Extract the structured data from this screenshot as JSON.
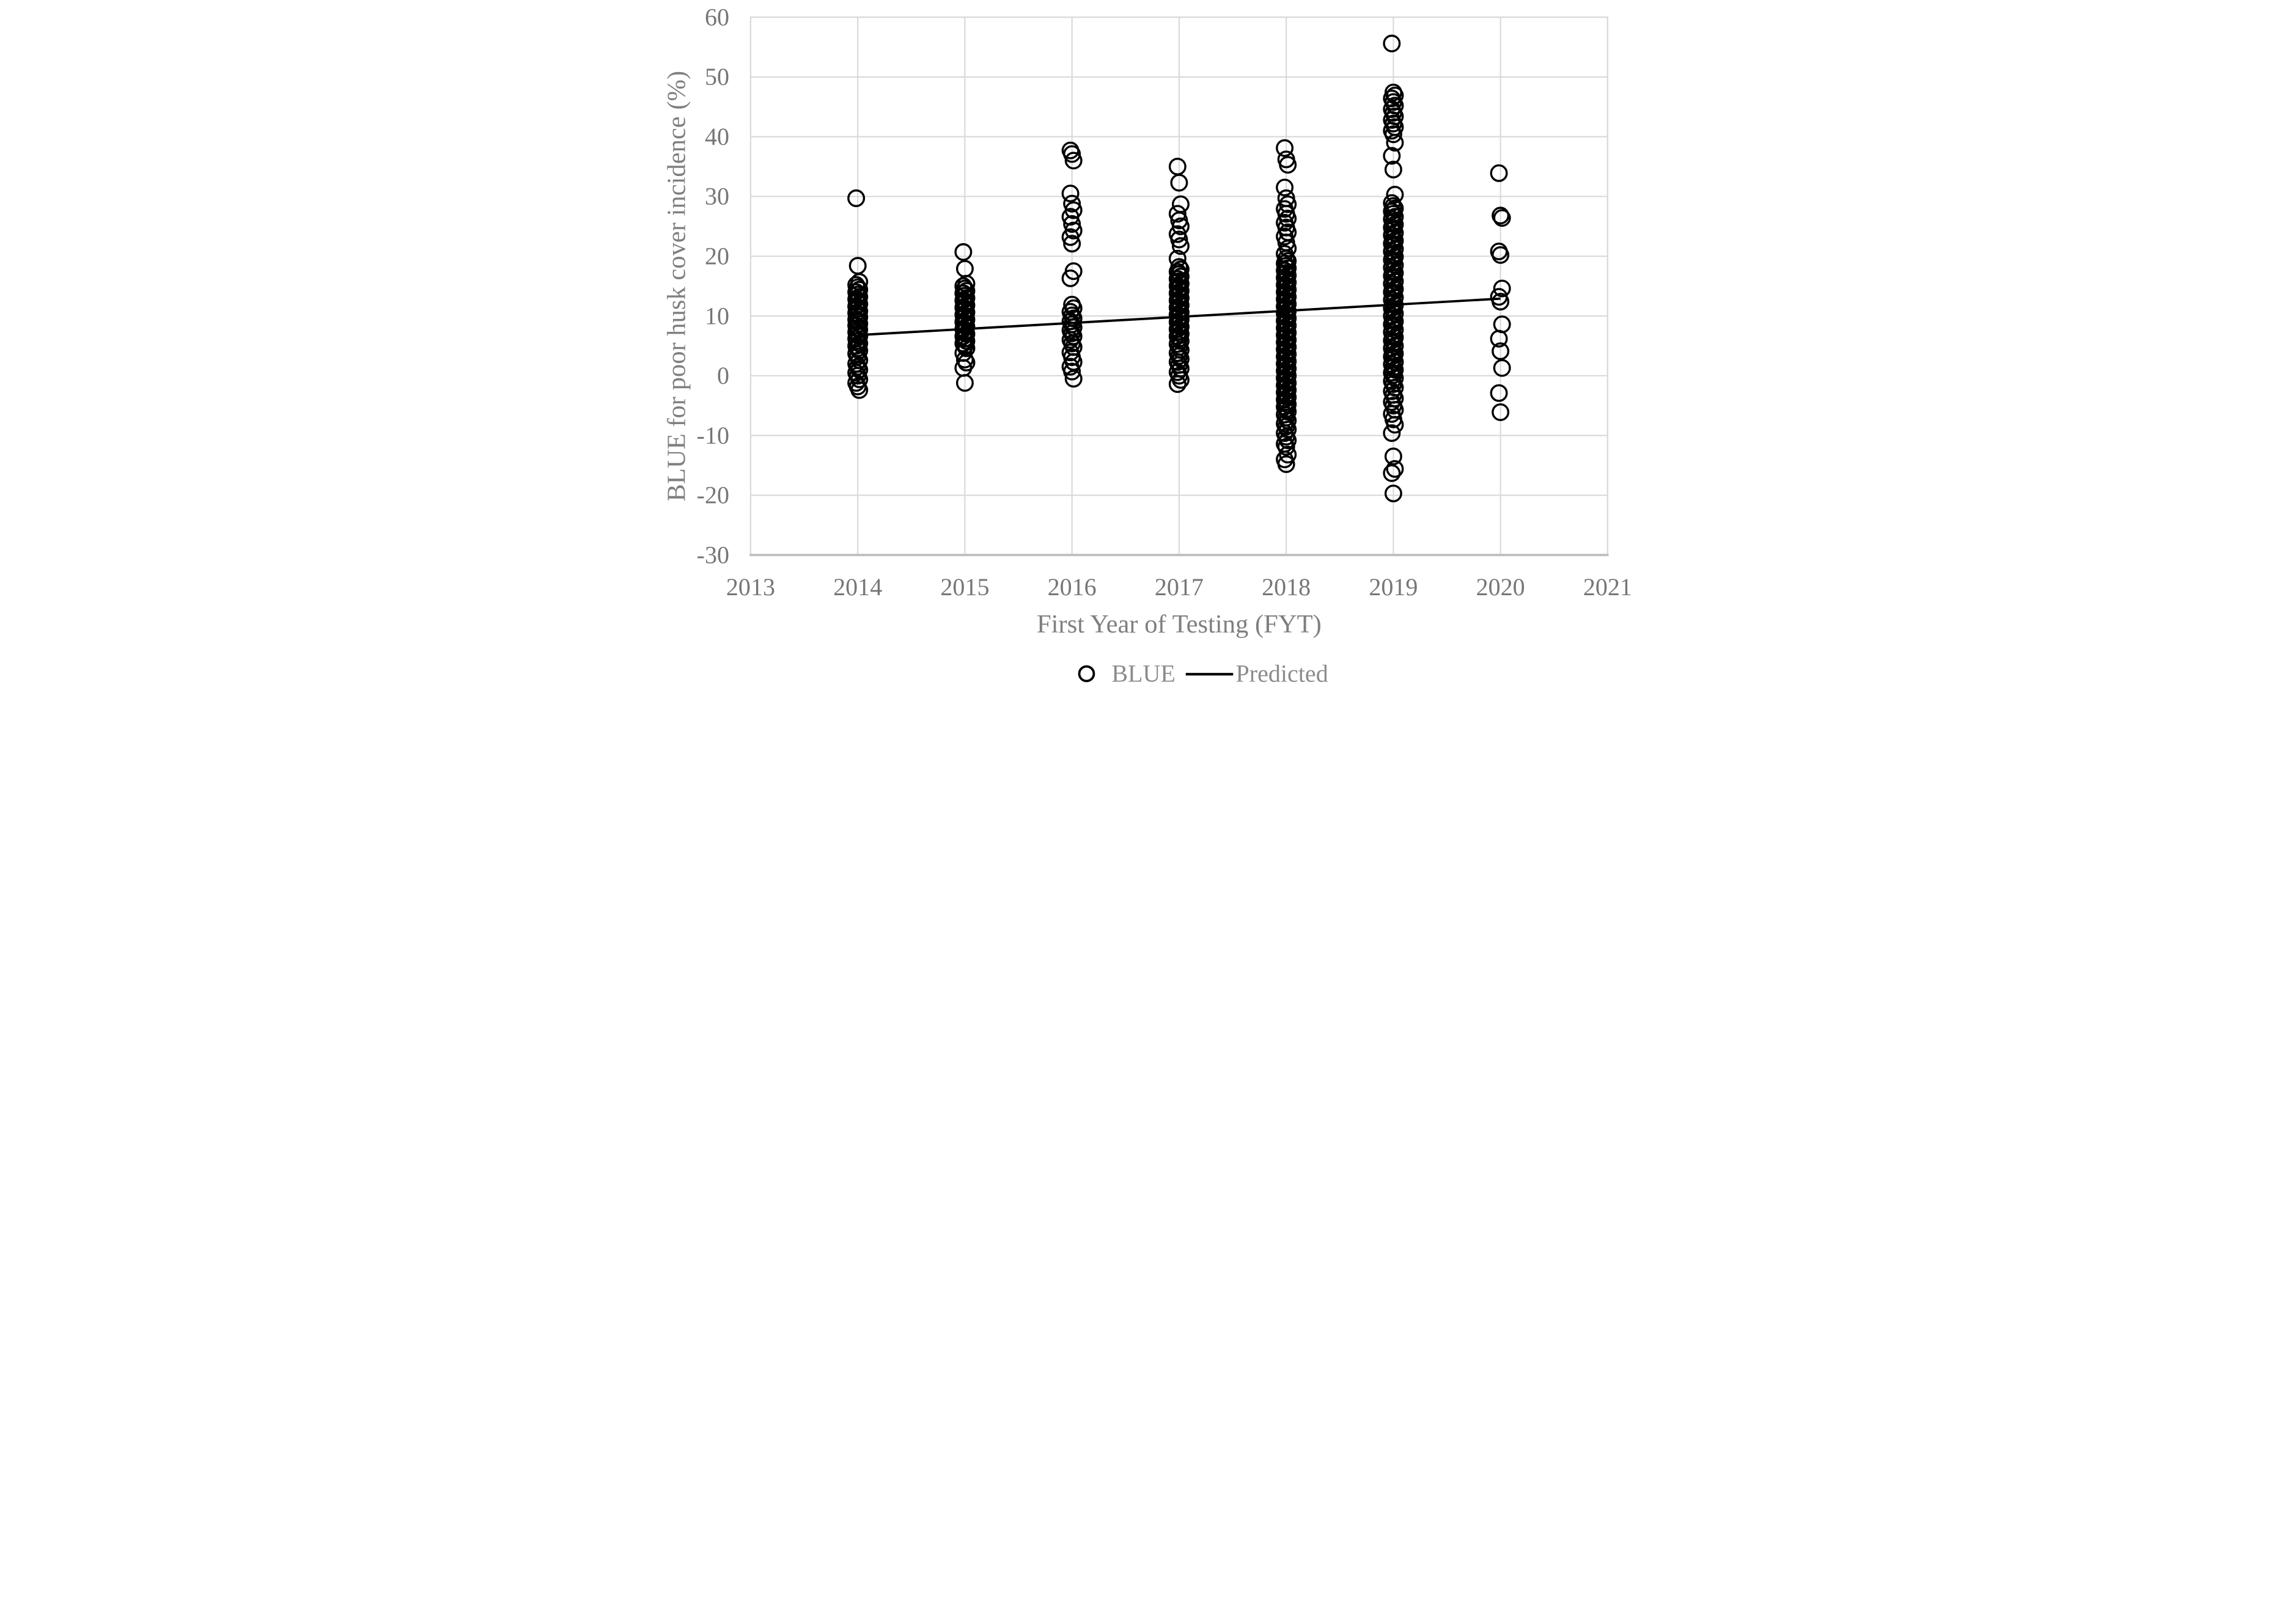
{
  "colors": {
    "background": "#ffffff",
    "gridline": "#d9d9d9",
    "axis_line": "#bfbfbf",
    "tick_text": "#767676",
    "title_text": "#7f7f7f",
    "legend_text": "#8c8c8c",
    "marker": "#000000",
    "trend_line": "#000000"
  },
  "chart_data": {
    "type": "scatter",
    "title": "",
    "xlabel": "First Year of Testing (FYT)",
    "ylabel": "BLUE for poor husk cover incidence (%)",
    "xlim": [
      2013,
      2021
    ],
    "ylim": [
      -30,
      60
    ],
    "x_ticks": [
      "2013",
      "2014",
      "2015",
      "2016",
      "2017",
      "2018",
      "2019",
      "2020",
      "2021"
    ],
    "y_ticks": [
      "60",
      "50",
      "40",
      "30",
      "20",
      "10",
      "0",
      "-10",
      "-20",
      "-30"
    ],
    "grid": true,
    "legend": {
      "position": "bottom-center",
      "entries": [
        {
          "label": "BLUE",
          "marker": "open-circle"
        },
        {
          "label": "Predicted",
          "marker": "line"
        }
      ]
    },
    "series": [
      {
        "name": "BLUE",
        "kind": "scatter",
        "marker": "open-circle",
        "groups": [
          {
            "x": 2014,
            "values": [
              29.7,
              18.4,
              15.7,
              15.2,
              14.8,
              14.4,
              14.0,
              13.6,
              13.2,
              12.8,
              12.4,
              12.0,
              11.6,
              11.2,
              10.8,
              10.5,
              10.1,
              9.8,
              9.4,
              9.1,
              8.7,
              8.4,
              8.0,
              7.7,
              7.3,
              7.0,
              6.6,
              6.2,
              5.8,
              5.4,
              5.0,
              4.6,
              4.2,
              3.7,
              3.2,
              2.6,
              2.0,
              1.5,
              1.0,
              0.5,
              0.0,
              -0.6,
              -1.2,
              -1.8,
              -2.4
            ]
          },
          {
            "x": 2015,
            "values": [
              20.7,
              17.9,
              15.4,
              15.0,
              14.6,
              14.2,
              13.8,
              13.4,
              13.0,
              12.6,
              12.2,
              11.8,
              11.4,
              11.0,
              10.6,
              10.2,
              9.8,
              9.4,
              9.0,
              8.6,
              8.2,
              7.8,
              7.4,
              7.0,
              6.6,
              6.2,
              5.8,
              5.4,
              5.0,
              4.6,
              3.8,
              2.7,
              2.2,
              1.3,
              -1.2
            ]
          },
          {
            "x": 2016,
            "values": [
              37.7,
              37.1,
              36.0,
              30.5,
              28.8,
              27.7,
              26.6,
              25.4,
              24.3,
              23.2,
              22.1,
              17.5,
              16.3,
              11.9,
              11.3,
              10.7,
              10.1,
              9.6,
              9.1,
              8.6,
              8.1,
              7.6,
              7.1,
              6.6,
              6.0,
              5.4,
              4.8,
              3.9,
              3.1,
              2.3,
              1.5,
              0.7,
              -0.5
            ]
          },
          {
            "x": 2017,
            "values": [
              35.0,
              32.3,
              28.7,
              27.1,
              26.0,
              25.0,
              23.7,
              22.8,
              21.7,
              19.6,
              18.2,
              17.8,
              17.4,
              17.0,
              16.6,
              16.2,
              15.8,
              15.4,
              15.0,
              14.6,
              14.2,
              13.8,
              13.4,
              13.0,
              12.6,
              12.2,
              11.8,
              11.4,
              11.0,
              10.6,
              10.2,
              9.8,
              9.4,
              9.0,
              8.6,
              8.2,
              7.8,
              7.4,
              7.0,
              6.6,
              6.2,
              5.8,
              5.3,
              4.8,
              4.3,
              3.8,
              3.3,
              2.8,
              2.3,
              1.8,
              1.2,
              0.6,
              0.0,
              -0.7,
              -1.4
            ]
          },
          {
            "x": 2018,
            "values": [
              38.1,
              36.2,
              35.3,
              31.5,
              29.7,
              28.7,
              27.9,
              27.1,
              26.3,
              25.6,
              24.8,
              24.0,
              23.3,
              22.3,
              21.3,
              20.4,
              19.6,
              19.2,
              18.8,
              18.4,
              18.0,
              17.6,
              17.2,
              16.8,
              16.4,
              16.0,
              15.6,
              15.2,
              14.8,
              14.4,
              14.0,
              13.6,
              13.2,
              12.8,
              12.4,
              12.0,
              11.6,
              11.2,
              10.8,
              10.4,
              10.0,
              9.6,
              9.2,
              8.8,
              8.4,
              8.0,
              7.6,
              7.2,
              6.8,
              6.4,
              6.0,
              5.6,
              5.2,
              4.8,
              4.4,
              4.0,
              3.6,
              3.2,
              2.8,
              2.4,
              2.0,
              1.6,
              1.2,
              0.8,
              0.4,
              0.0,
              -0.4,
              -0.8,
              -1.2,
              -1.6,
              -2.0,
              -2.4,
              -2.8,
              -3.2,
              -3.6,
              -4.0,
              -4.4,
              -4.8,
              -5.2,
              -5.6,
              -6.0,
              -6.5,
              -7.0,
              -7.5,
              -8.0,
              -8.5,
              -9.0,
              -9.6,
              -10.2,
              -10.8,
              -11.4,
              -11.9,
              -13.2,
              -14.0,
              -14.8
            ]
          },
          {
            "x": 2019,
            "values": [
              55.6,
              47.4,
              46.9,
              46.4,
              45.8,
              45.2,
              44.6,
              44.0,
              43.4,
              42.8,
              42.2,
              41.6,
              41.0,
              40.4,
              39.0,
              36.8,
              34.5,
              30.3,
              28.9,
              28.4,
              28.0,
              27.5,
              27.1,
              26.6,
              26.2,
              25.7,
              25.3,
              24.8,
              24.4,
              23.9,
              23.5,
              23.0,
              22.6,
              22.1,
              21.7,
              21.2,
              20.8,
              20.3,
              19.9,
              19.4,
              19.0,
              18.5,
              18.1,
              17.6,
              17.2,
              16.7,
              16.3,
              15.8,
              15.4,
              14.9,
              14.5,
              14.0,
              13.6,
              13.1,
              12.7,
              12.2,
              11.8,
              11.3,
              10.9,
              10.4,
              10.0,
              9.5,
              9.1,
              8.6,
              8.2,
              7.7,
              7.3,
              6.8,
              6.4,
              5.9,
              5.5,
              5.0,
              4.6,
              4.1,
              3.7,
              3.2,
              2.8,
              2.3,
              1.9,
              1.4,
              1.0,
              0.5,
              0.1,
              -0.4,
              -0.9,
              -1.4,
              -2.0,
              -2.6,
              -3.2,
              -3.8,
              -4.4,
              -5.0,
              -5.7,
              -6.4,
              -7.3,
              -8.2,
              -9.6,
              -13.5,
              -15.6,
              -16.3,
              -19.7
            ]
          },
          {
            "x": 2020,
            "values": [
              33.9,
              26.8,
              26.4,
              20.8,
              20.2,
              14.6,
              13.2,
              12.4,
              8.6,
              6.2,
              4.1,
              1.3,
              -2.9,
              -6.1
            ]
          }
        ]
      },
      {
        "name": "Predicted",
        "kind": "line",
        "points": [
          {
            "x": 2014,
            "y": 6.8
          },
          {
            "x": 2020,
            "y": 12.9
          }
        ]
      }
    ]
  }
}
